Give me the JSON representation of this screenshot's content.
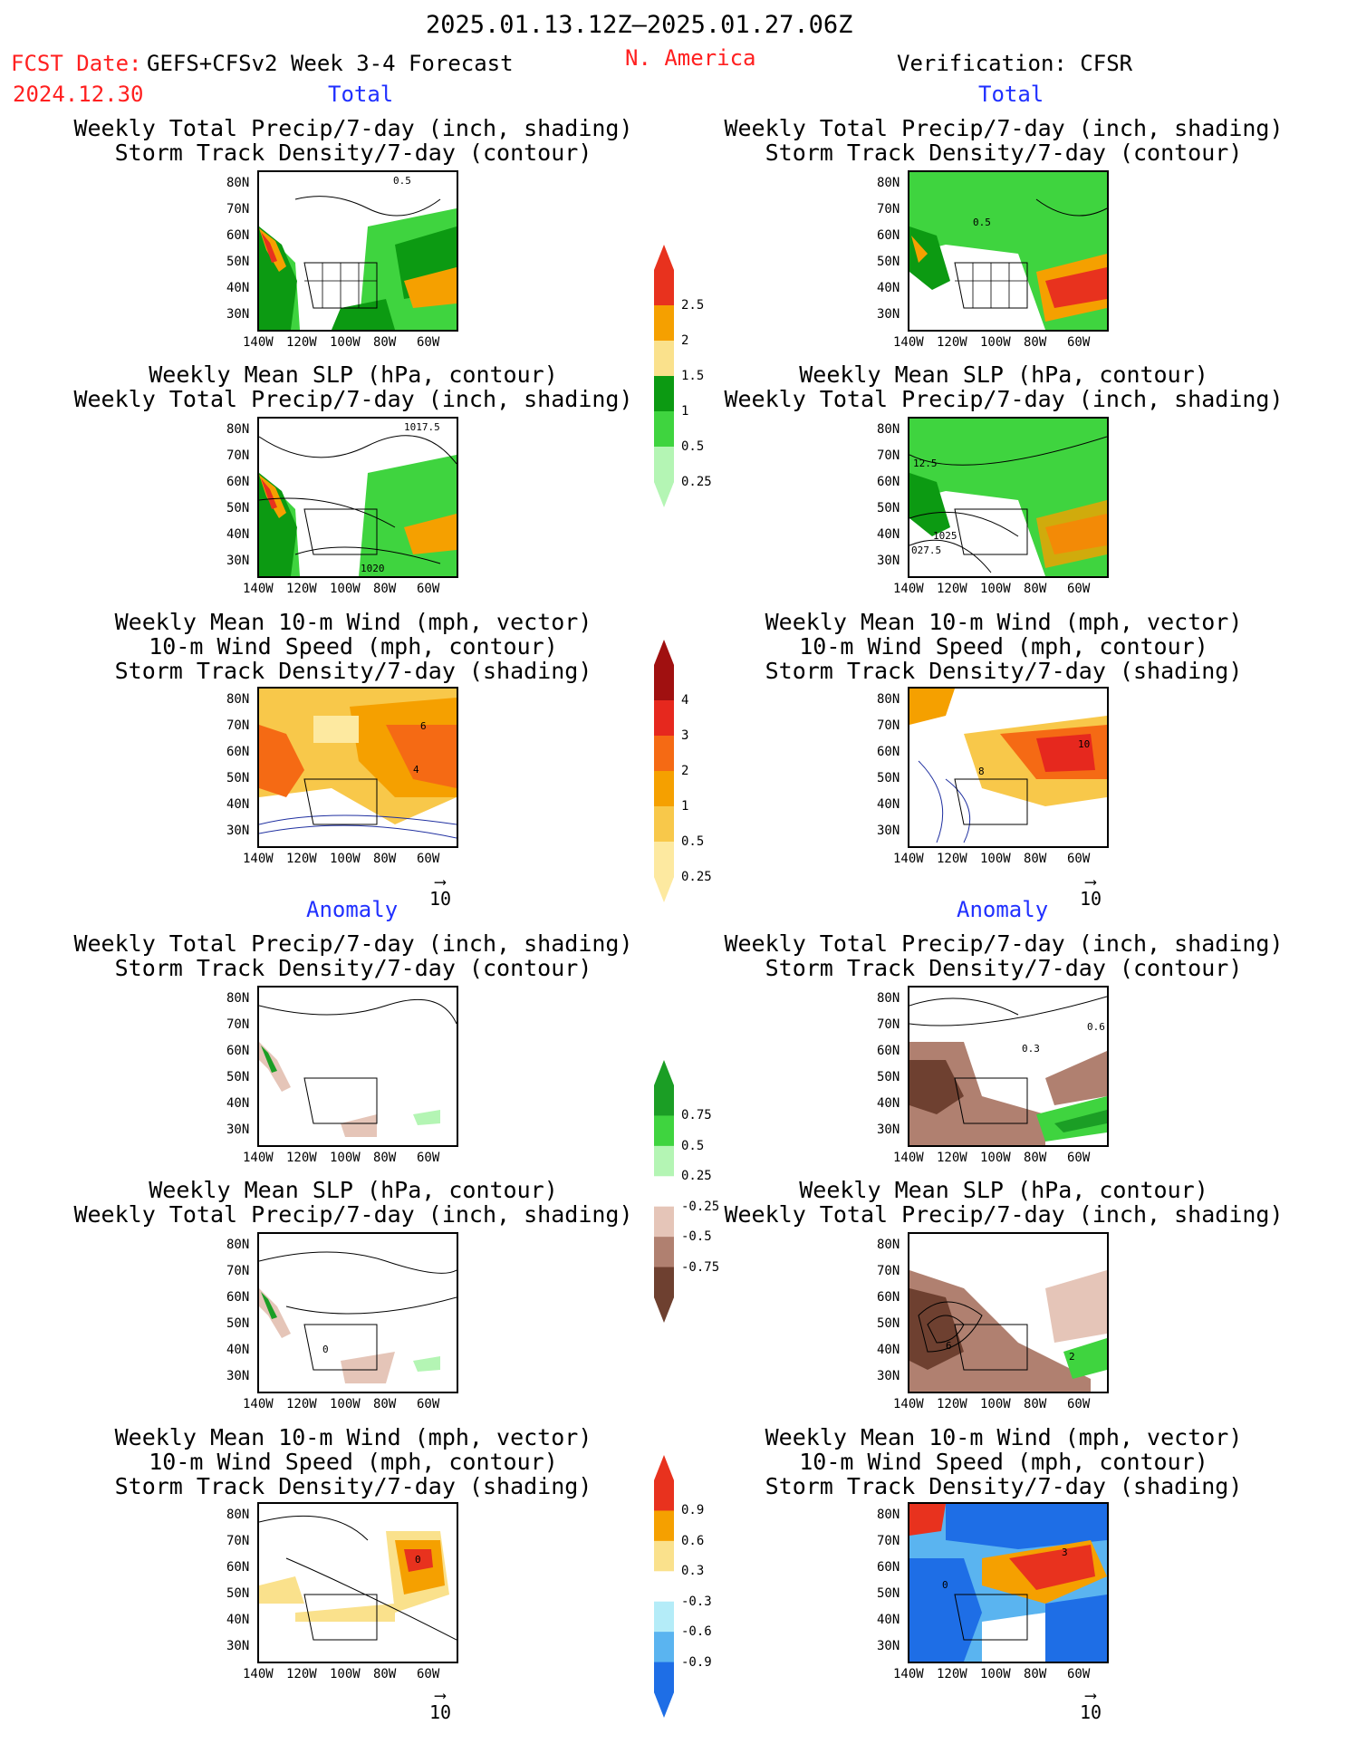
{
  "header": {
    "date_range": "2025.01.13.12Z–2025.01.27.06Z",
    "fcst_date_label": "FCST Date:",
    "fcst_model": "GEFS+CFSv2 Week 3-4 Forecast",
    "fcst_date": "2024.12.30",
    "region": "N. America",
    "verification": "Verification: CFSR"
  },
  "sections": {
    "total": "Total",
    "anomaly": "Anomaly"
  },
  "panel_titles": {
    "precip_storm": "Weekly Total Precip/7-day (inch, shading)\nStorm Track Density/7-day (contour)",
    "slp_precip": "Weekly Mean SLP (hPa, contour)\nWeekly Total Precip/7-day (inch, shading)",
    "wind_storm": "Weekly Mean 10-m Wind (mph, vector)\n10-m Wind Speed (mph, contour)\nStorm Track Density/7-day (shading)"
  },
  "axes": {
    "lat_ticks": [
      "80N",
      "70N",
      "60N",
      "50N",
      "40N",
      "30N"
    ],
    "lon_ticks": [
      "140W",
      "120W",
      "100W",
      "80W",
      "60W"
    ]
  },
  "vector_ref": "10",
  "map_labels": {
    "fc_total_precip": "0.5",
    "fc_total_slp": [
      "1017.5",
      "1020"
    ],
    "fc_total_wind": [
      "6",
      "4"
    ],
    "ver_total_precip": "0.5",
    "ver_total_slp": [
      "12.5",
      "1025",
      "027.5"
    ],
    "ver_total_wind": [
      "10",
      "8"
    ],
    "ver_anom_precip": [
      "0.6",
      "0.3"
    ],
    "fc_anom_slp": "0",
    "ver_anom_slp": [
      "6",
      "2"
    ],
    "fc_anom_wind": "0",
    "ver_anom_wind": [
      "3",
      "0"
    ]
  },
  "colorbars": {
    "total_precip": {
      "labels": [
        "2.5",
        "2",
        "1.5",
        "1",
        "0.5",
        "0.25"
      ],
      "colors": [
        "#e8321e",
        "#f5a000",
        "#fae18c",
        "#0c9a12",
        "#3fd43f",
        "#b4f5b4"
      ]
    },
    "total_storm": {
      "labels": [
        "4",
        "3",
        "2",
        "1",
        "0.5",
        "0.25"
      ],
      "colors": [
        "#a01010",
        "#e6281e",
        "#f56a14",
        "#f5a000",
        "#f8c84a",
        "#fde9a0"
      ]
    },
    "anom_precip": {
      "labels": [
        "0.75",
        "0.5",
        "0.25",
        "-0.25",
        "-0.5",
        "-0.75"
      ],
      "colors": [
        "#1b9e25",
        "#3fd43f",
        "#b4f5b4",
        "#ffffff",
        "#e5c5b8",
        "#b08070",
        "#6e4030"
      ]
    },
    "anom_storm": {
      "labels": [
        "0.9",
        "0.6",
        "0.3",
        "-0.3",
        "-0.6",
        "-0.9"
      ],
      "colors": [
        "#e8321e",
        "#f5a000",
        "#fae18c",
        "#ffffff",
        "#b4ecf8",
        "#5ab4f0",
        "#1e6ee6"
      ]
    }
  }
}
